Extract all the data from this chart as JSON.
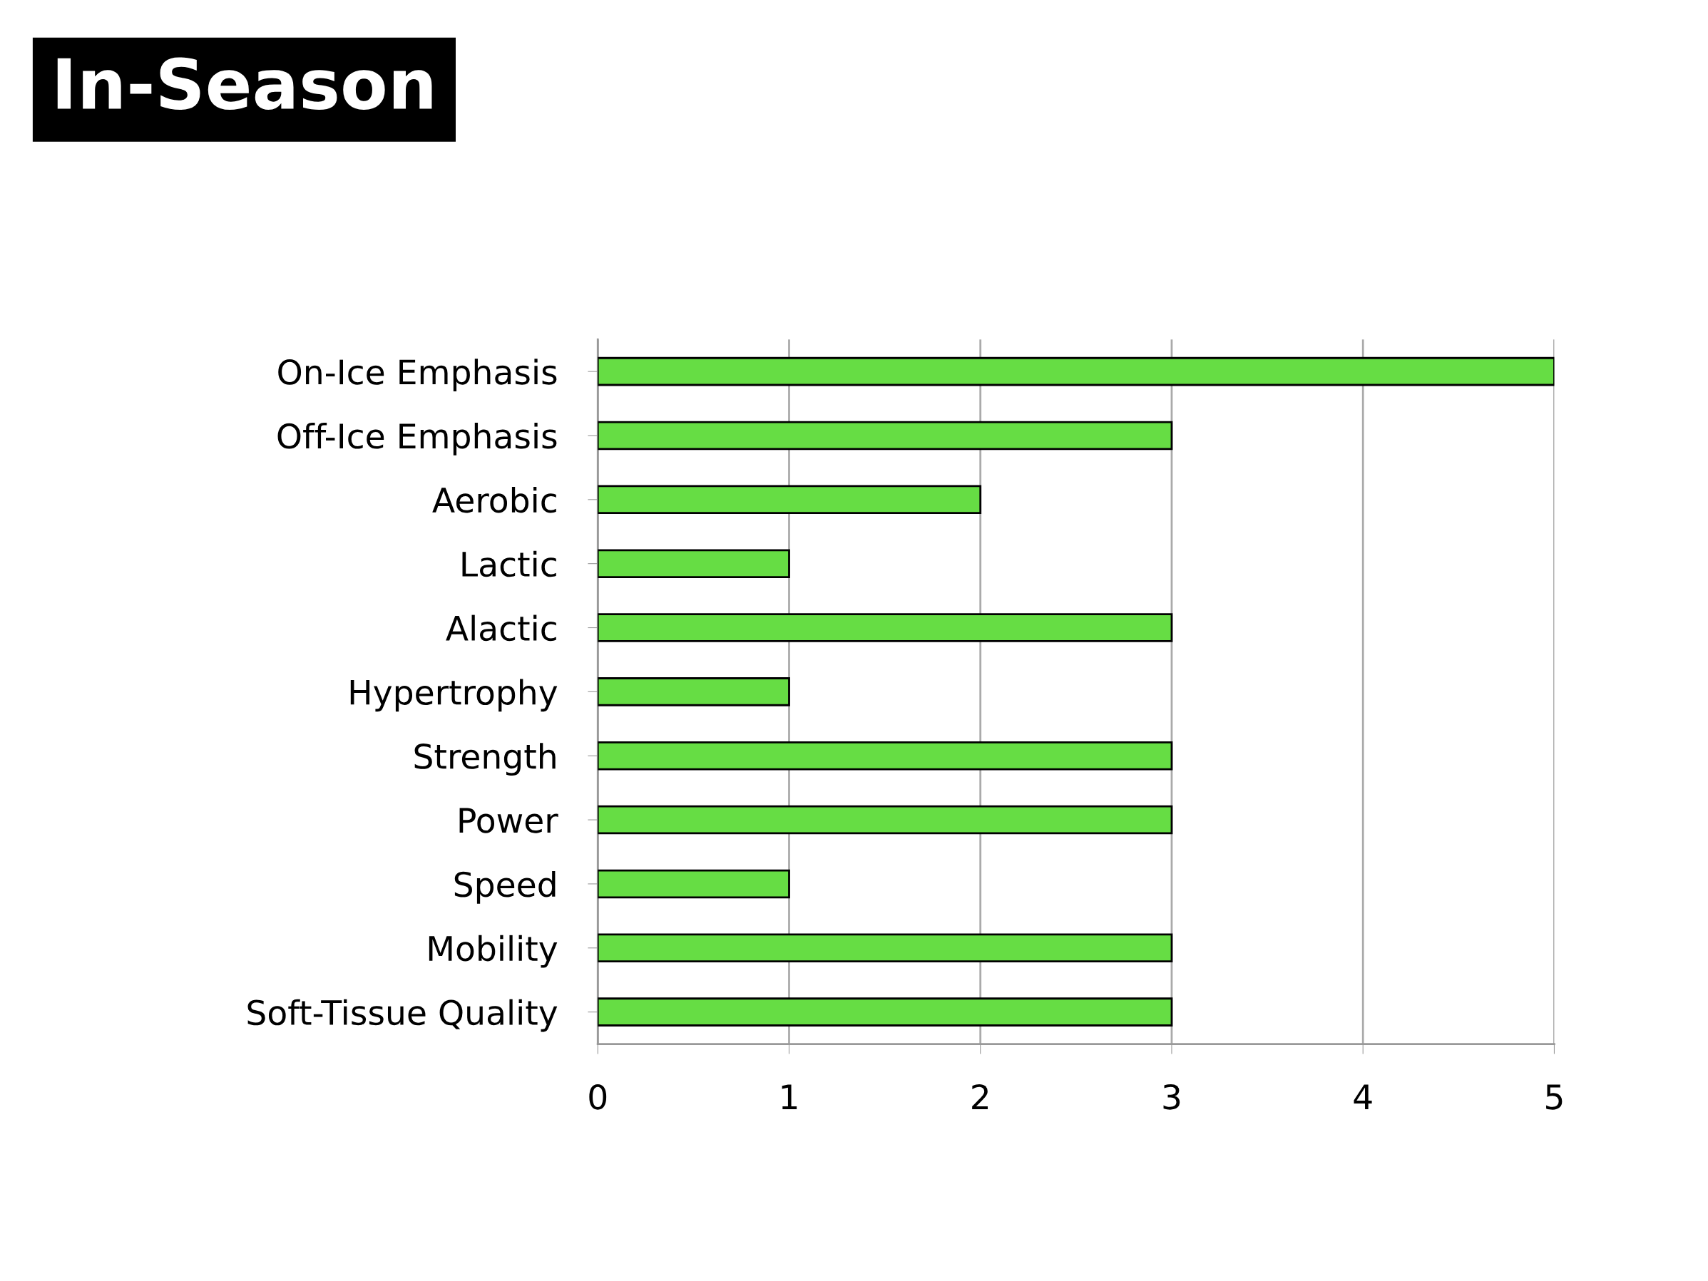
{
  "chart_data": {
    "type": "bar",
    "orientation": "horizontal",
    "title": "In-Season",
    "categories": [
      "On-Ice Emphasis",
      "Off-Ice Emphasis",
      "Aerobic",
      "Lactic",
      "Alactic",
      "Hypertrophy",
      "Strength",
      "Power",
      "Speed",
      "Mobility",
      "Soft-Tissue Quality"
    ],
    "values": [
      5,
      3,
      2,
      1,
      3,
      1,
      3,
      3,
      1,
      3,
      3
    ],
    "color": "#66dd44",
    "xlim": [
      0,
      5
    ],
    "xticks": [
      0,
      1,
      2,
      3,
      4,
      5
    ],
    "grid": "x",
    "legend": false
  }
}
